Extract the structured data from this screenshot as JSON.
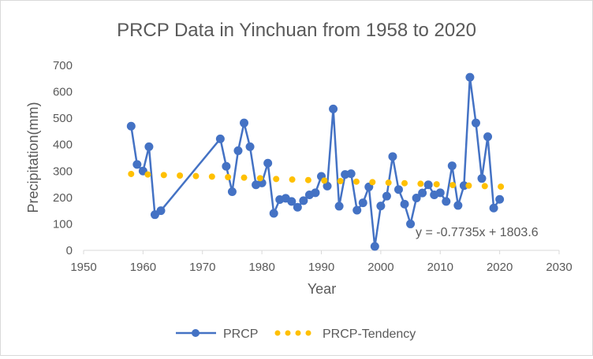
{
  "chart_data": {
    "type": "line",
    "title": "PRCP Data in Yinchuan from 1958 to 2020",
    "xlabel": "Year",
    "ylabel": "Precipitation(mm)",
    "xlim": [
      1950,
      2030
    ],
    "ylim": [
      0,
      700
    ],
    "x_ticks": [
      1950,
      1960,
      1970,
      1980,
      1990,
      2000,
      2010,
      2020,
      2030
    ],
    "y_ticks": [
      0,
      100,
      200,
      300,
      400,
      500,
      600,
      700
    ],
    "grid": false,
    "legend_position": "bottom",
    "series": [
      {
        "name": "PRCP",
        "style": "line-with-markers",
        "color": "#4472c4",
        "x": [
          1958,
          1959,
          1960,
          1961,
          1962,
          1963,
          1973,
          1974,
          1975,
          1976,
          1977,
          1978,
          1979,
          1980,
          1981,
          1982,
          1983,
          1984,
          1985,
          1986,
          1987,
          1988,
          1989,
          1990,
          1991,
          1992,
          1993,
          1994,
          1995,
          1996,
          1997,
          1998,
          1999,
          2000,
          2001,
          2002,
          2003,
          2004,
          2005,
          2006,
          2007,
          2008,
          2009,
          2010,
          2011,
          2012,
          2013,
          2014,
          2015,
          2016,
          2017,
          2018,
          2019,
          2020
        ],
        "values": [
          470,
          325,
          300,
          392,
          135,
          150,
          422,
          318,
          222,
          377,
          482,
          392,
          248,
          255,
          330,
          140,
          192,
          197,
          185,
          163,
          188,
          210,
          218,
          280,
          243,
          535,
          167,
          287,
          290,
          152,
          180,
          240,
          15,
          168,
          205,
          355,
          230,
          175,
          100,
          198,
          217,
          248,
          210,
          218,
          185,
          320,
          170,
          245,
          655,
          482,
          272,
          430,
          160,
          193
        ]
      },
      {
        "name": "PRCP-Tendency",
        "style": "dotted",
        "color": "#ffc000",
        "x": [
          1958,
          1960.8,
          1963.5,
          1966.2,
          1968.9,
          1971.6,
          1974.3,
          1977,
          1979.7,
          1982.4,
          1985.1,
          1987.8,
          1990.5,
          1993.2,
          1995.9,
          1998.6,
          2001.3,
          2004,
          2006.7,
          2009.4,
          2012.1,
          2014.8,
          2017.5,
          2020.2
        ],
        "values": [
          289,
          287,
          285,
          283,
          281,
          279,
          277,
          275,
          273,
          270,
          268,
          266,
          264,
          262,
          260,
          258,
          256,
          254,
          252,
          250,
          247,
          245,
          243,
          241
        ]
      }
    ],
    "annotations": [
      {
        "text": "y = -0.7735x + 1803.6"
      }
    ]
  }
}
